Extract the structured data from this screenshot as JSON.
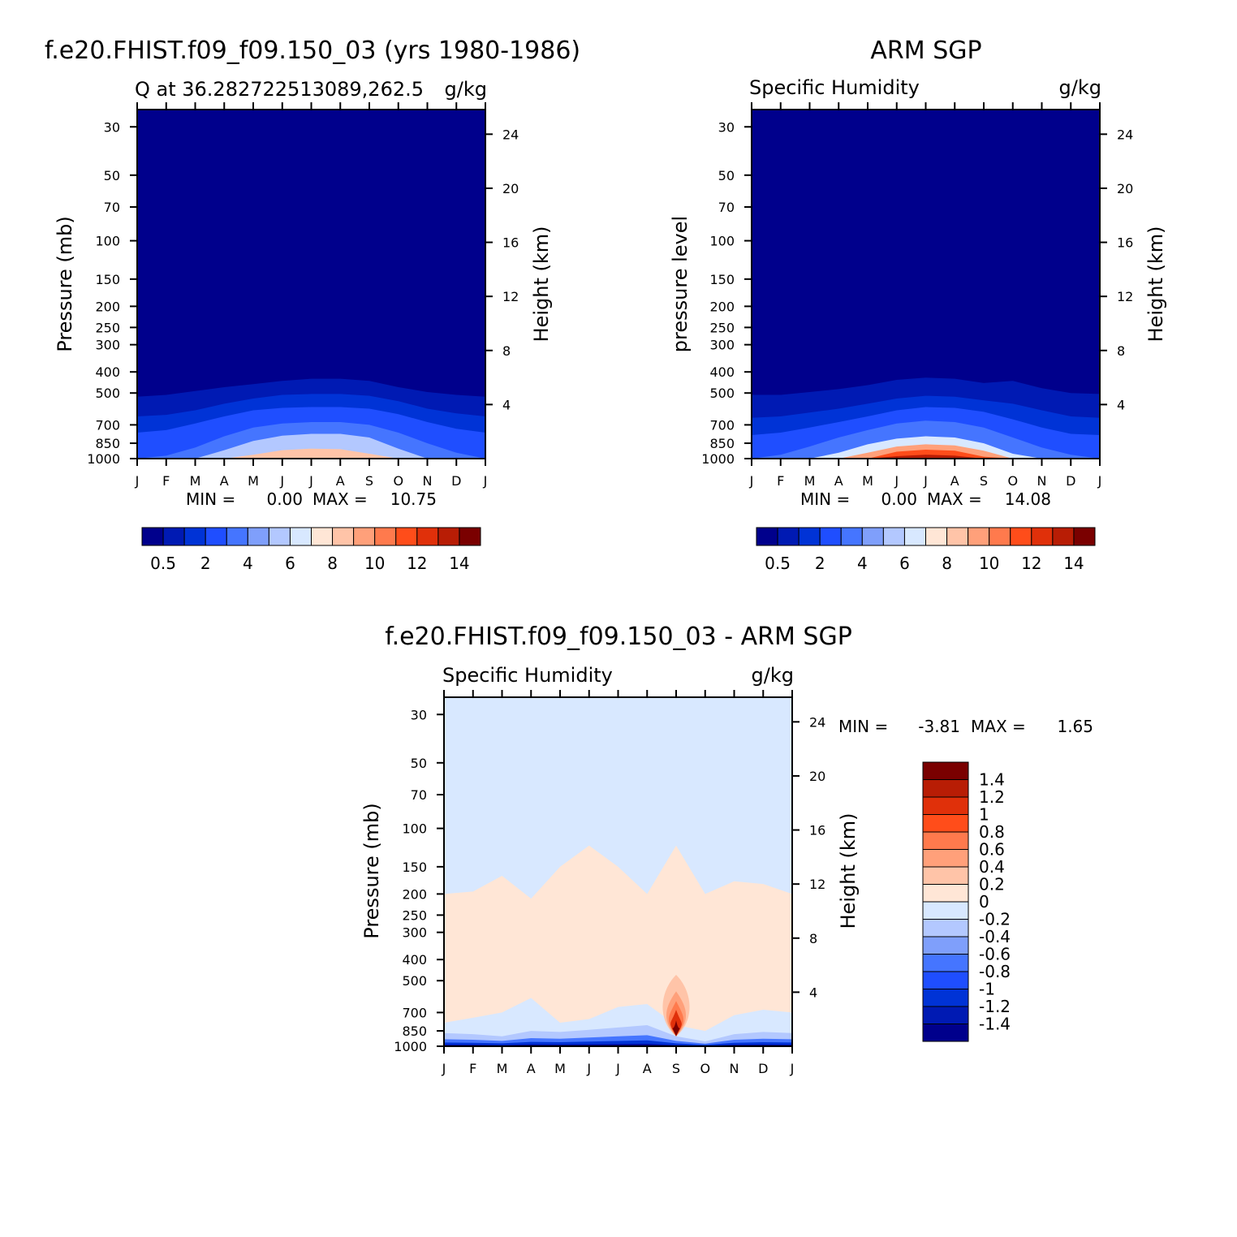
{
  "panel_a": {
    "title": "f.e20.FHIST.f09_f09.150_03 (yrs 1980-1986)",
    "subtitle_left": "Q at 36.282722513089,262.5",
    "subtitle_right": "g/kg",
    "ylabel_left": "Pressure (mb)",
    "ylabel_right": "Height (km)",
    "min_label": "MIN =",
    "min_value": "0.00",
    "max_label": "MAX =",
    "max_value": "10.75"
  },
  "panel_b": {
    "title": "ARM SGP",
    "subtitle_left": "Specific Humidity",
    "subtitle_right": "g/kg",
    "ylabel_left": "pressure level",
    "ylabel_right": "Height (km)",
    "min_label": "MIN =",
    "min_value": "0.00",
    "max_label": "MAX =",
    "max_value": "14.08"
  },
  "panel_c": {
    "title": "f.e20.FHIST.f09_f09.150_03 - ARM SGP",
    "subtitle_left": "Specific Humidity",
    "subtitle_right": "g/kg",
    "ylabel_left": "Pressure (mb)",
    "ylabel_right": "Height (km)",
    "min_label": "MIN =",
    "min_value": "-3.81",
    "max_label": "MAX =",
    "max_value": "1.65"
  },
  "chart_data": [
    {
      "type": "heatmap",
      "x_categories": [
        "J",
        "F",
        "M",
        "A",
        "M",
        "J",
        "J",
        "A",
        "S",
        "O",
        "N",
        "D",
        "J"
      ],
      "y_left_ticks": [
        30,
        50,
        70,
        100,
        150,
        200,
        250,
        300,
        400,
        500,
        700,
        850,
        1000
      ],
      "y_right_ticks": [
        24,
        20,
        16,
        12,
        8,
        4
      ],
      "ylim": [
        1000,
        25
      ],
      "colorbar_labels": [
        "0.5",
        "2",
        "4",
        "6",
        "8",
        "10",
        "12",
        "14"
      ],
      "colorbar_colors": [
        "#00008c",
        "#001ab3",
        "#0033d6",
        "#1f4eff",
        "#4575ff",
        "#7f9ffb",
        "#b3c8ff",
        "#d8e8ff",
        "#ffe6d6",
        "#ffc4a8",
        "#ffa07a",
        "#ff7a4d",
        "#ff4d1a",
        "#e0300a",
        "#b81d05",
        "#7a0000"
      ],
      "series": [
        {
          "name": "0.5",
          "values": [
            520,
            510,
            490,
            470,
            455,
            440,
            430,
            430,
            440,
            470,
            495,
            510,
            520
          ]
        },
        {
          "name": "2",
          "values": [
            640,
            630,
            600,
            560,
            530,
            510,
            505,
            505,
            515,
            545,
            590,
            620,
            640
          ]
        },
        {
          "name": "4",
          "values": [
            760,
            740,
            690,
            640,
            600,
            585,
            580,
            580,
            590,
            625,
            680,
            730,
            760
          ]
        },
        {
          "name": "6",
          "values": [
            1000,
            970,
            890,
            790,
            720,
            690,
            680,
            680,
            700,
            760,
            850,
            940,
            1000
          ]
        },
        {
          "name": "8",
          "values": [
            1000,
            1000,
            1000,
            915,
            830,
            785,
            770,
            770,
            800,
            900,
            1000,
            1000,
            1000
          ]
        },
        {
          "name": "10",
          "values": [
            1000,
            1000,
            1000,
            1000,
            960,
            915,
            900,
            905,
            950,
            1000,
            1000,
            1000,
            1000
          ]
        }
      ]
    },
    {
      "type": "heatmap",
      "x_categories": [
        "J",
        "F",
        "M",
        "A",
        "M",
        "J",
        "J",
        "A",
        "S",
        "O",
        "N",
        "D",
        "J"
      ],
      "y_left_ticks": [
        30,
        50,
        70,
        100,
        150,
        200,
        250,
        300,
        400,
        500,
        700,
        850,
        1000
      ],
      "y_right_ticks": [
        24,
        20,
        16,
        12,
        8,
        4
      ],
      "ylim": [
        1000,
        25
      ],
      "colorbar_labels": [
        "0.5",
        "2",
        "4",
        "6",
        "8",
        "10",
        "12",
        "14"
      ],
      "colorbar_colors": [
        "#00008c",
        "#001ab3",
        "#0033d6",
        "#1f4eff",
        "#4575ff",
        "#7f9ffb",
        "#b3c8ff",
        "#d8e8ff",
        "#ffe6d6",
        "#ffc4a8",
        "#ffa07a",
        "#ff7a4d",
        "#ff4d1a",
        "#e0300a",
        "#b81d05",
        "#7a0000"
      ],
      "series": [
        {
          "name": "0.5",
          "values": [
            510,
            510,
            495,
            480,
            460,
            435,
            425,
            430,
            450,
            440,
            475,
            500,
            505
          ]
        },
        {
          "name": "2",
          "values": [
            650,
            640,
            615,
            590,
            560,
            530,
            515,
            520,
            540,
            560,
            600,
            640,
            650
          ]
        },
        {
          "name": "4",
          "values": [
            780,
            760,
            720,
            680,
            640,
            600,
            580,
            585,
            610,
            660,
            720,
            770,
            780
          ]
        },
        {
          "name": "6",
          "values": [
            1000,
            960,
            880,
            800,
            740,
            690,
            670,
            680,
            720,
            800,
            890,
            960,
            1000
          ]
        },
        {
          "name": "8",
          "values": [
            1000,
            1000,
            1000,
            940,
            860,
            810,
            790,
            800,
            850,
            950,
            1000,
            1000,
            1000
          ]
        },
        {
          "name": "10",
          "values": [
            1000,
            1000,
            1000,
            1000,
            940,
            880,
            860,
            870,
            920,
            1000,
            1000,
            1000,
            1000
          ]
        },
        {
          "name": "12",
          "values": [
            1000,
            1000,
            1000,
            1000,
            1000,
            930,
            910,
            920,
            980,
            1000,
            1000,
            1000,
            1000
          ]
        },
        {
          "name": "14",
          "values": [
            1000,
            1000,
            1000,
            1000,
            1000,
            975,
            960,
            970,
            1000,
            1000,
            1000,
            1000,
            1000
          ]
        }
      ]
    },
    {
      "type": "heatmap",
      "x_categories": [
        "J",
        "F",
        "M",
        "A",
        "M",
        "J",
        "J",
        "A",
        "S",
        "O",
        "N",
        "D",
        "J"
      ],
      "y_left_ticks": [
        30,
        50,
        70,
        100,
        150,
        200,
        250,
        300,
        400,
        500,
        700,
        850,
        1000
      ],
      "y_right_ticks": [
        24,
        20,
        16,
        12,
        8,
        4
      ],
      "ylim": [
        1000,
        25
      ],
      "colorbar_labels": [
        "1.4",
        "1.2",
        "1",
        "0.8",
        "0.6",
        "0.4",
        "0.2",
        "0",
        "-0.2",
        "-0.4",
        "-0.6",
        "-0.8",
        "-1",
        "-1.2",
        "-1.4"
      ],
      "colorbar_colors": [
        "#7a0000",
        "#b81d05",
        "#e0300a",
        "#ff4d1a",
        "#ff7a4d",
        "#ffa07a",
        "#ffc4a8",
        "#ffe6d6",
        "#d8e8ff",
        "#b3c8ff",
        "#7f9ffb",
        "#4575ff",
        "#1f4eff",
        "#0033d6",
        "#001ab3",
        "#00008c"
      ],
      "series": [
        {
          "name": "0 (upper boundary of positive region)",
          "values": [
            200,
            195,
            165,
            210,
            150,
            120,
            150,
            200,
            120,
            200,
            175,
            180,
            200
          ]
        },
        {
          "name": "0 (lower boundary of positive region)",
          "values": [
            780,
            740,
            700,
            600,
            780,
            750,
            660,
            640,
            800,
            850,
            720,
            680,
            700
          ]
        },
        {
          "name": "-0.2",
          "values": [
            870,
            880,
            900,
            850,
            860,
            840,
            820,
            800,
            900,
            950,
            880,
            860,
            870
          ]
        }
      ]
    }
  ]
}
